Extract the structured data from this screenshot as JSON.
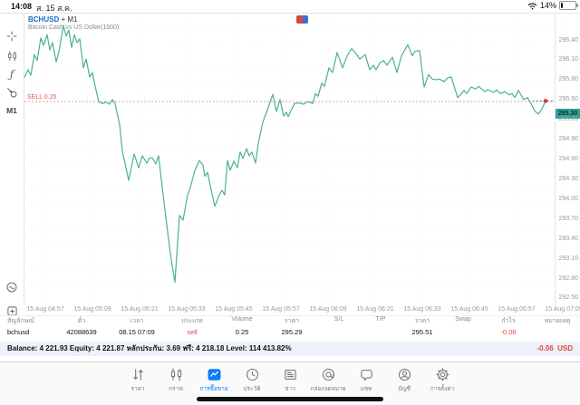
{
  "status_bar": {
    "time": "14:08",
    "date": "ส. 15 ส.ค.",
    "battery_percent": "14%"
  },
  "chart_header": {
    "symbol": "BCHUSD",
    "separator": "+",
    "timeframe": "M1",
    "description": "Bitcoin Cash vs US Dollar(1000)"
  },
  "left_toolbar": {
    "timeframe_label": "M1"
  },
  "colors": {
    "line": "#4db093",
    "price_tag_bg": "#2ea493",
    "sell_red": "#e05a54",
    "profit_red": "#e0453c",
    "symbol_blue": "#1769c4",
    "nav_active_blue": "#0a7aff"
  },
  "chart_data": {
    "type": "line",
    "symbol": "BCHUSD",
    "timeframe": "M1",
    "title": "Bitcoin Cash vs US Dollar(1000)",
    "current_price": 295.3,
    "current_price_label": "295.30",
    "sell_line": {
      "label": "SELL 0.25",
      "price": 295.29
    },
    "ylim": [
      292.5,
      296.4
    ],
    "y_ticks": [
      "296.40",
      "296.10",
      "295.80",
      "295.50",
      "295.20",
      "294.90",
      "294.60",
      "294.30",
      "294.00",
      "293.70",
      "293.40",
      "293.10",
      "292.80",
      "292.50"
    ],
    "x_ticks": [
      "15 Aug 04:57",
      "15 Aug 05:09",
      "15 Aug 05:21",
      "15 Aug 05:33",
      "15 Aug 05:45",
      "15 Aug 05:57",
      "15 Aug 06:09",
      "15 Aug 06:21",
      "15 Aug 06:33",
      "15 Aug 06:45",
      "15 Aug 06:57",
      "15 Aug 07:09"
    ],
    "points": [
      [
        27,
        295.66
      ],
      [
        31,
        295.77
      ],
      [
        34,
        295.69
      ],
      [
        38,
        296.0
      ],
      [
        41,
        295.91
      ],
      [
        45,
        296.25
      ],
      [
        48,
        296.14
      ],
      [
        52,
        296.3
      ],
      [
        55,
        296.07
      ],
      [
        58,
        296.18
      ],
      [
        62,
        295.89
      ],
      [
        65,
        296.04
      ],
      [
        70,
        296.44
      ],
      [
        73,
        296.28
      ],
      [
        76,
        296.37
      ],
      [
        79,
        296.11
      ],
      [
        82,
        296.3
      ],
      [
        85,
        296.18
      ],
      [
        88,
        296.24
      ],
      [
        92,
        295.8
      ],
      [
        95,
        295.93
      ],
      [
        99,
        295.66
      ],
      [
        102,
        295.73
      ],
      [
        105,
        295.52
      ],
      [
        109,
        295.29
      ],
      [
        113,
        295.26
      ],
      [
        117,
        295.28
      ],
      [
        121,
        295.25
      ],
      [
        124,
        295.32
      ],
      [
        127,
        295.26
      ],
      [
        132,
        294.94
      ],
      [
        135,
        294.54
      ],
      [
        139,
        294.29
      ],
      [
        142,
        294.1
      ],
      [
        148,
        294.5
      ],
      [
        153,
        294.29
      ],
      [
        157,
        294.47
      ],
      [
        162,
        294.36
      ],
      [
        165,
        294.44
      ],
      [
        168,
        294.44
      ],
      [
        172,
        294.35
      ],
      [
        175,
        294.47
      ],
      [
        178,
        294.11
      ],
      [
        183,
        293.54
      ],
      [
        188,
        292.99
      ],
      [
        193,
        292.56
      ],
      [
        198,
        293.57
      ],
      [
        202,
        293.5
      ],
      [
        207,
        293.88
      ],
      [
        210,
        293.99
      ],
      [
        215,
        294.25
      ],
      [
        220,
        294.4
      ],
      [
        224,
        294.33
      ],
      [
        226,
        294.16
      ],
      [
        229,
        294.22
      ],
      [
        232,
        294.02
      ],
      [
        237,
        293.71
      ],
      [
        242,
        293.88
      ],
      [
        245,
        293.95
      ],
      [
        248,
        293.88
      ],
      [
        251,
        294.4
      ],
      [
        254,
        294.25
      ],
      [
        258,
        294.39
      ],
      [
        262,
        294.29
      ],
      [
        265,
        294.53
      ],
      [
        268,
        294.43
      ],
      [
        272,
        294.58
      ],
      [
        275,
        294.47
      ],
      [
        278,
        294.53
      ],
      [
        282,
        294.36
      ],
      [
        285,
        294.66
      ],
      [
        290,
        294.98
      ],
      [
        295,
        295.16
      ],
      [
        301,
        295.4
      ],
      [
        305,
        295.14
      ],
      [
        309,
        295.32
      ],
      [
        313,
        295.07
      ],
      [
        316,
        295.13
      ],
      [
        318,
        295.06
      ],
      [
        322,
        295.18
      ],
      [
        325,
        295.26
      ],
      [
        330,
        295.27
      ],
      [
        335,
        295.25
      ],
      [
        340,
        295.29
      ],
      [
        345,
        295.26
      ],
      [
        348,
        295.41
      ],
      [
        351,
        295.37
      ],
      [
        355,
        295.57
      ],
      [
        358,
        295.52
      ],
      [
        363,
        295.8
      ],
      [
        367,
        295.73
      ],
      [
        372,
        296.03
      ],
      [
        378,
        295.8
      ],
      [
        383,
        295.98
      ],
      [
        388,
        296.09
      ],
      [
        392,
        296.03
      ],
      [
        397,
        295.93
      ],
      [
        403,
        296.0
      ],
      [
        408,
        295.77
      ],
      [
        412,
        295.84
      ],
      [
        415,
        295.77
      ],
      [
        419,
        295.87
      ],
      [
        423,
        295.91
      ],
      [
        427,
        295.84
      ],
      [
        433,
        295.96
      ],
      [
        438,
        295.73
      ],
      [
        443,
        295.98
      ],
      [
        450,
        296.15
      ],
      [
        455,
        295.98
      ],
      [
        458,
        296.05
      ],
      [
        463,
        296.06
      ],
      [
        468,
        295.51
      ],
      [
        473,
        295.7
      ],
      [
        477,
        295.63
      ],
      [
        482,
        295.62
      ],
      [
        485,
        295.63
      ],
      [
        490,
        295.59
      ],
      [
        494,
        295.65
      ],
      [
        498,
        295.66
      ],
      [
        505,
        295.35
      ],
      [
        508,
        295.39
      ],
      [
        512,
        295.46
      ],
      [
        515,
        295.41
      ],
      [
        520,
        295.51
      ],
      [
        525,
        295.48
      ],
      [
        528,
        295.52
      ],
      [
        535,
        295.44
      ],
      [
        538,
        295.47
      ],
      [
        545,
        295.43
      ],
      [
        548,
        295.47
      ],
      [
        552,
        295.41
      ],
      [
        557,
        295.44
      ],
      [
        562,
        295.39
      ],
      [
        565,
        295.41
      ],
      [
        568,
        295.35
      ],
      [
        572,
        295.46
      ],
      [
        578,
        295.32
      ],
      [
        582,
        295.35
      ],
      [
        586,
        295.26
      ],
      [
        590,
        295.15
      ],
      [
        594,
        295.1
      ],
      [
        598,
        295.18
      ],
      [
        602,
        295.3
      ]
    ]
  },
  "positions_table": {
    "headers": [
      "สัญลักษณ์",
      "ตั๋ว",
      "เวลา",
      "ประเภท",
      "Volume",
      "ราคา",
      "S/L",
      "T/P",
      "ราคา",
      "Swap",
      "กำไร",
      "หมายเหตุ"
    ],
    "row": [
      "bchusd",
      "42088639",
      "08.15 07:09",
      "sell",
      "0.25",
      "295.29",
      "",
      "",
      "295.51",
      "",
      "-0.06",
      ""
    ]
  },
  "account_row": {
    "summary": "Balance: 4 221.93 Equity: 4 221.87 หลักประกัน: 3.69 ฟรี: 4 218.18 Level: 114 413.82%",
    "profit": "-0.06",
    "currency": "USD"
  },
  "bottom_nav": {
    "active_index": 2,
    "items": [
      {
        "icon": "quotes-icon",
        "label": "ราคา"
      },
      {
        "icon": "chart-icon",
        "label": "กราฟ"
      },
      {
        "icon": "trade-icon",
        "label": "การซื้อขาย"
      },
      {
        "icon": "history-icon",
        "label": "ประวัติ"
      },
      {
        "icon": "news-icon",
        "label": "ข่าว"
      },
      {
        "icon": "mailbox-icon",
        "label": "กล่องจดหมาย"
      },
      {
        "icon": "chat-icon",
        "label": "แชท"
      },
      {
        "icon": "accounts-icon",
        "label": "บัญชี"
      },
      {
        "icon": "settings-icon",
        "label": "การตั้งค่า"
      }
    ]
  }
}
